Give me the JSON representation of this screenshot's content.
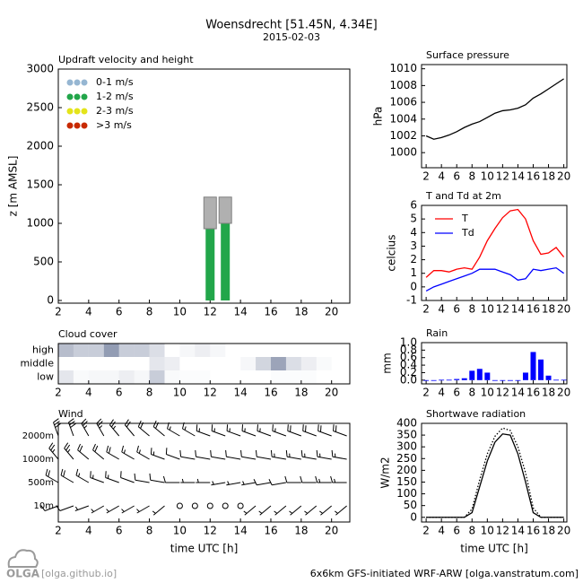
{
  "header": {
    "title": "Woensdrecht [51.45N, 4.34E]",
    "subtitle": "2015-02-03"
  },
  "chart_data": [
    {
      "type": "bar",
      "title": "Updraft velocity and height",
      "ylabel": "z [m AMSL]",
      "x": [
        12,
        13
      ],
      "xlim": [
        2,
        21.2
      ],
      "xticks": [
        2,
        4,
        6,
        8,
        10,
        12,
        14,
        16,
        18,
        20
      ],
      "ylim": [
        -35,
        3000
      ],
      "yticks": [
        0,
        500,
        1000,
        1500,
        2000,
        2500,
        3000
      ],
      "series": [
        {
          "name": "0-1 m/s",
          "color": "#96b6d2",
          "values": [
            null,
            null
          ]
        },
        {
          "name": "1-2 m/s",
          "color": "#22a64a",
          "values": [
            930,
            1000
          ]
        },
        {
          "name": "2-3 m/s",
          "color": "#e4e41a",
          "values": [
            null,
            null
          ]
        },
        {
          "name": ">3 m/s",
          "color": "#c82a00",
          "values": [
            null,
            null
          ]
        }
      ],
      "cloud_top": [
        1340,
        1340
      ],
      "cloud_color": "#b0b0b0"
    },
    {
      "type": "heatmap",
      "title": "Cloud cover",
      "rows": [
        "high",
        "middle",
        "low"
      ],
      "x": [
        2,
        3,
        4,
        5,
        6,
        7,
        8,
        9,
        10,
        11,
        12,
        13,
        14,
        15,
        16,
        17,
        18,
        19,
        20
      ],
      "xlim": [
        2,
        21.2
      ],
      "xticks": [
        2,
        4,
        6,
        8,
        10,
        12,
        14,
        16,
        18,
        20
      ],
      "color": "#4a5a80",
      "values": [
        [
          40,
          30,
          30,
          60,
          30,
          30,
          20,
          0,
          5,
          10,
          5,
          0,
          0,
          0,
          0,
          0,
          0,
          0,
          0
        ],
        [
          0,
          0,
          0,
          0,
          0,
          0,
          15,
          10,
          0,
          0,
          0,
          0,
          5,
          25,
          55,
          20,
          10,
          3,
          0
        ],
        [
          15,
          3,
          5,
          5,
          10,
          5,
          30,
          3,
          2,
          2,
          0,
          0,
          0,
          0,
          2,
          2,
          2,
          0,
          0
        ]
      ]
    },
    {
      "type": "barbs",
      "title": "Wind",
      "xlabel": "time UTC [h]",
      "levels": [
        "2000m",
        "1000m",
        "500m",
        "10m"
      ],
      "x": [
        2,
        3,
        4,
        5,
        6,
        7,
        8,
        9,
        10,
        11,
        12,
        13,
        14,
        15,
        16,
        17,
        18,
        19,
        20,
        21
      ],
      "xlim": [
        2,
        21.2
      ],
      "xticks": [
        2,
        4,
        6,
        8,
        10,
        12,
        14,
        16,
        18,
        20
      ],
      "direction": [
        [
          340,
          340,
          330,
          330,
          320,
          320,
          310,
          310,
          300,
          300,
          290,
          290,
          290,
          290,
          290,
          290,
          290,
          290,
          290,
          290
        ],
        [
          320,
          320,
          310,
          310,
          300,
          300,
          300,
          290,
          290,
          280,
          280,
          280,
          280,
          280,
          280,
          280,
          280,
          280,
          280,
          280
        ],
        [
          300,
          300,
          300,
          290,
          290,
          290,
          280,
          280,
          270,
          270,
          270,
          260,
          260,
          260,
          260,
          260,
          270,
          270,
          270,
          270
        ],
        [
          250,
          250,
          250,
          240,
          240,
          240,
          240,
          230,
          null,
          null,
          null,
          null,
          null,
          230,
          230,
          230,
          230,
          230,
          230,
          230
        ]
      ],
      "speed": [
        [
          30,
          30,
          28,
          25,
          25,
          22,
          20,
          20,
          18,
          18,
          16,
          15,
          15,
          15,
          15,
          18,
          20,
          20,
          20,
          20
        ],
        [
          25,
          25,
          22,
          20,
          20,
          18,
          15,
          15,
          12,
          12,
          10,
          10,
          10,
          10,
          12,
          15,
          15,
          15,
          18,
          18
        ],
        [
          20,
          20,
          18,
          15,
          15,
          12,
          10,
          10,
          10,
          8,
          8,
          5,
          5,
          8,
          10,
          10,
          12,
          12,
          15,
          15
        ],
        [
          10,
          10,
          8,
          8,
          5,
          5,
          5,
          5,
          0,
          0,
          0,
          0,
          0,
          5,
          5,
          5,
          5,
          5,
          8,
          8
        ]
      ]
    },
    {
      "type": "line",
      "title": "Surface pressure",
      "ylabel": "hPa",
      "x": [
        2,
        3,
        4,
        5,
        6,
        7,
        8,
        9,
        10,
        11,
        12,
        13,
        14,
        15,
        16,
        17,
        18,
        19,
        20
      ],
      "xlim": [
        1.4,
        20.4
      ],
      "xticks": [
        2,
        4,
        6,
        8,
        10,
        12,
        14,
        16,
        18,
        20
      ],
      "ylim": [
        998.2,
        1010.5
      ],
      "yticks": [
        1000,
        1002,
        1004,
        1006,
        1008,
        1010
      ],
      "series": [
        {
          "color": "#000000",
          "values": [
            1002.0,
            1001.6,
            1001.8,
            1002.1,
            1002.5,
            1003.0,
            1003.4,
            1003.7,
            1004.2,
            1004.7,
            1005.0,
            1005.1,
            1005.3,
            1005.7,
            1006.5,
            1007.0,
            1007.6,
            1008.2,
            1008.8
          ]
        }
      ]
    },
    {
      "type": "line",
      "title": "T and Td at 2m",
      "ylabel": "celcius",
      "x": [
        2,
        3,
        4,
        5,
        6,
        7,
        8,
        9,
        10,
        11,
        12,
        13,
        14,
        15,
        16,
        17,
        18,
        19,
        20
      ],
      "xlim": [
        1.4,
        20.4
      ],
      "xticks": [
        2,
        4,
        6,
        8,
        10,
        12,
        14,
        16,
        18,
        20
      ],
      "ylim": [
        -1,
        6
      ],
      "yticks": [
        -1,
        0,
        1,
        2,
        3,
        4,
        5,
        6
      ],
      "series": [
        {
          "name": "T",
          "color": "#ff0000",
          "values": [
            0.7,
            1.2,
            1.2,
            1.1,
            1.3,
            1.4,
            1.3,
            2.2,
            3.4,
            4.3,
            5.1,
            5.6,
            5.7,
            5.0,
            3.4,
            2.4,
            2.5,
            2.9,
            2.2
          ]
        },
        {
          "name": "Td",
          "color": "#0000ff",
          "values": [
            -0.3,
            0.0,
            0.2,
            0.4,
            0.6,
            0.8,
            1.0,
            1.3,
            1.3,
            1.3,
            1.1,
            0.9,
            0.5,
            0.6,
            1.3,
            1.2,
            1.3,
            1.4,
            1.0
          ]
        }
      ]
    },
    {
      "type": "bar",
      "title": "Rain",
      "ylabel": "mm",
      "color": "#0000ff",
      "x": [
        2,
        3,
        4,
        5,
        6,
        7,
        8,
        9,
        10,
        11,
        12,
        13,
        14,
        15,
        16,
        17,
        18,
        19,
        20
      ],
      "xlim": [
        1.4,
        20.4
      ],
      "xticks": [
        2,
        4,
        6,
        8,
        10,
        12,
        14,
        16,
        18,
        20
      ],
      "ylim": [
        -0.1,
        1.0
      ],
      "yticks": [
        {
          "value": 0,
          "label": "0.0"
        },
        {
          "value": 0.2,
          "label": "0.2"
        },
        {
          "value": 0.4,
          "label": "0.4"
        },
        {
          "value": 0.6,
          "label": "0.6"
        },
        {
          "value": 0.8,
          "label": "0.8"
        },
        {
          "value": 1,
          "label": "1.0"
        }
      ],
      "values": [
        0,
        0,
        0.01,
        0.01,
        0.03,
        0.05,
        0.25,
        0.3,
        0.2,
        0,
        0,
        0,
        0,
        0.2,
        0.75,
        0.55,
        0.12,
        0.01,
        0.01
      ]
    },
    {
      "type": "line",
      "title": "Shortwave radiation",
      "ylabel": "W/m2",
      "xlabel": "time UTC [h]",
      "x": [
        2,
        3,
        4,
        5,
        6,
        7,
        8,
        9,
        10,
        11,
        12,
        13,
        14,
        15,
        16,
        17,
        18,
        19,
        20
      ],
      "xlim": [
        1.4,
        20.4
      ],
      "xticks": [
        2,
        4,
        6,
        8,
        10,
        12,
        14,
        16,
        18,
        20
      ],
      "ylim": [
        -20,
        400
      ],
      "yticks": [
        0,
        50,
        100,
        150,
        200,
        250,
        300,
        350,
        400
      ],
      "series": [
        {
          "color": "#000000",
          "values": [
            0,
            0,
            0,
            0,
            0,
            0,
            20,
            130,
            240,
            320,
            355,
            350,
            270,
            150,
            20,
            0,
            0,
            0,
            0
          ]
        },
        {
          "color": "#000000",
          "dashed": true,
          "values": [
            0,
            0,
            0,
            0,
            0,
            0,
            35,
            160,
            270,
            345,
            380,
            370,
            300,
            190,
            40,
            0,
            0,
            0,
            0
          ]
        }
      ]
    }
  ],
  "footer": {
    "logo": "OLGA",
    "link": "[olga.github.io]",
    "credit": "6x6km GFS-initiated WRF-ARW [olga.vanstratum.com]"
  }
}
